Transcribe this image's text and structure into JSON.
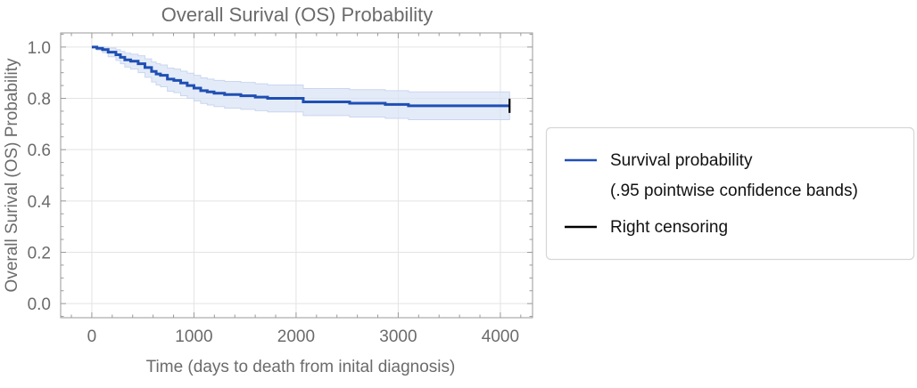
{
  "chart_data": {
    "type": "line",
    "title": "Overall Surival (OS) Probability",
    "xlabel": "Time (days to death from inital diagnosis)",
    "ylabel": "Overall Surival (OS) Probability",
    "xlim": [
      -305,
      4315
    ],
    "ylim": [
      -0.055,
      1.055
    ],
    "x_ticks": [
      0,
      1000,
      2000,
      3000,
      4000
    ],
    "x_tick_labels": [
      "0",
      "1000",
      "2000",
      "3000",
      "4000"
    ],
    "y_ticks": [
      0.0,
      0.2,
      0.4,
      0.6,
      0.8,
      1.0
    ],
    "y_tick_labels": [
      "0.0",
      "0.2",
      "0.4",
      "0.6",
      "0.8",
      "1.0"
    ],
    "x_minor_step": 200,
    "y_minor_step": 0.05,
    "grid": true,
    "legend_position": "right",
    "series": [
      {
        "name": "Survival probability",
        "style": "step",
        "color": "#1f4fb3",
        "x": [
          0,
          50,
          105,
          160,
          236,
          280,
          323,
          380,
          454,
          520,
          585,
          630,
          672,
          740,
          803,
          870,
          934,
          1000,
          1066,
          1130,
          1197,
          1300,
          1459,
          1600,
          1721,
          2070,
          2524,
          2873,
          3100,
          4090
        ],
        "y": [
          1.0,
          0.995,
          0.99,
          0.98,
          0.97,
          0.96,
          0.95,
          0.945,
          0.935,
          0.92,
          0.905,
          0.895,
          0.89,
          0.875,
          0.87,
          0.86,
          0.85,
          0.84,
          0.83,
          0.825,
          0.82,
          0.815,
          0.81,
          0.805,
          0.8,
          0.786,
          0.781,
          0.776,
          0.771,
          0.771
        ],
        "lower": [
          1.0,
          0.988,
          0.978,
          0.962,
          0.948,
          0.935,
          0.922,
          0.914,
          0.9,
          0.882,
          0.864,
          0.852,
          0.845,
          0.828,
          0.822,
          0.81,
          0.8,
          0.79,
          0.78,
          0.774,
          0.768,
          0.762,
          0.757,
          0.752,
          0.747,
          0.733,
          0.727,
          0.722,
          0.717,
          0.717
        ],
        "upper": [
          1.0,
          1.0,
          1.0,
          0.996,
          0.99,
          0.983,
          0.976,
          0.972,
          0.966,
          0.954,
          0.942,
          0.935,
          0.93,
          0.918,
          0.914,
          0.906,
          0.898,
          0.89,
          0.88,
          0.875,
          0.87,
          0.866,
          0.862,
          0.857,
          0.852,
          0.838,
          0.834,
          0.83,
          0.825,
          0.825
        ]
      }
    ],
    "censor_marks": {
      "name": "Right censoring",
      "x": [
        4090
      ],
      "y": [
        0.771
      ],
      "color": "#000000"
    },
    "band_color": "#dbe4f6"
  },
  "legend": {
    "items": [
      {
        "label": "Survival probability",
        "color": "#1f4fb3"
      },
      {
        "label": "(.95 pointwise confidence bands)",
        "color": null
      },
      {
        "label": "Right censoring",
        "color": "#000000"
      }
    ]
  }
}
